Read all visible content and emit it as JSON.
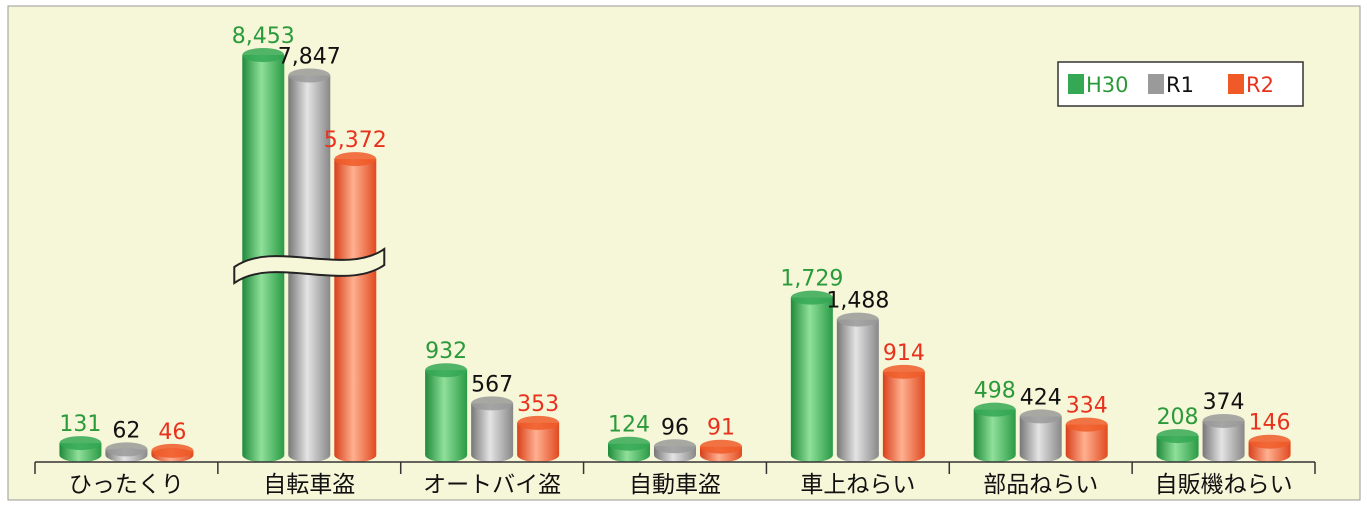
{
  "chart_data": {
    "type": "bar",
    "categories": [
      "ひったくり",
      "自転車盗",
      "オートバイ盗",
      "自動車盗",
      "車上ねらい",
      "部品ねらい",
      "自販機ねらい"
    ],
    "series": [
      {
        "name": "H30",
        "color": "#34a853",
        "label_color": "#2a9a3a",
        "values": [
          131,
          8453,
          932,
          124,
          1729,
          498,
          208
        ],
        "value_labels": [
          "131",
          "8,453",
          "932",
          "124",
          "1,729",
          "498",
          "208"
        ]
      },
      {
        "name": "R1",
        "color": "#9a9a9a",
        "label_color": "#111111",
        "values": [
          62,
          7847,
          567,
          96,
          1488,
          424,
          374
        ],
        "value_labels": [
          "62",
          "7,847",
          "567",
          "96",
          "1,488",
          "424",
          "374"
        ]
      },
      {
        "name": "R2",
        "color": "#f05a28",
        "label_color": "#e8321e",
        "values": [
          46,
          5372,
          353,
          91,
          914,
          334,
          146
        ],
        "value_labels": [
          "46",
          "5,372",
          "353",
          "91",
          "914",
          "334",
          "146"
        ]
      }
    ],
    "axis_break": true,
    "legend": "upper right"
  }
}
